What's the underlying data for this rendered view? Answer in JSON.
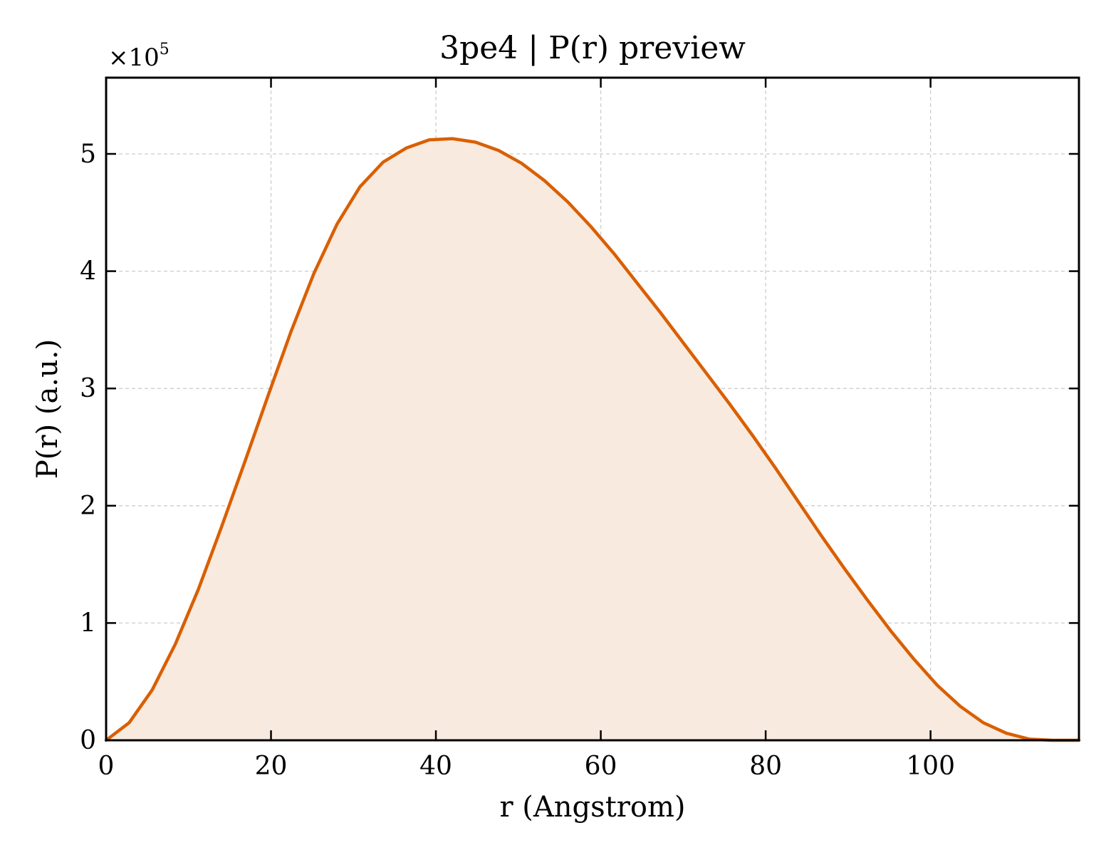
{
  "chart_data": {
    "type": "area",
    "title": "3pe4 | P(r) preview",
    "xlabel": "r (Angstrom)",
    "ylabel": "P(r) (a.u.)",
    "y_multiplier": {
      "base": "×10",
      "exponent": "5"
    },
    "xlim": [
      0,
      118
    ],
    "ylim": [
      0,
      5.65
    ],
    "y_scale_factor": 100000,
    "x_ticks": [
      0,
      20,
      40,
      60,
      80,
      100
    ],
    "y_ticks": [
      0,
      1,
      2,
      3,
      4,
      5
    ],
    "grid": true,
    "legend": "none",
    "series": [
      {
        "color": "#d95f02",
        "fill_color": "#f8eadf",
        "x": [
          0,
          2.8,
          5.6,
          8.4,
          11.2,
          14.0,
          16.8,
          19.6,
          22.4,
          25.2,
          28.0,
          30.8,
          33.6,
          36.4,
          39.2,
          42.0,
          44.8,
          47.6,
          50.4,
          53.2,
          56.0,
          58.8,
          61.6,
          64.4,
          67.2,
          70.0,
          72.8,
          75.6,
          78.4,
          81.2,
          84.0,
          86.8,
          89.6,
          92.4,
          95.2,
          98.0,
          100.8,
          103.6,
          106.4,
          109.2,
          112.0,
          114.8,
          118.0
        ],
        "y": [
          0.0,
          0.15,
          0.43,
          0.82,
          1.29,
          1.82,
          2.37,
          2.93,
          3.48,
          3.98,
          4.4,
          4.72,
          4.93,
          5.05,
          5.12,
          5.13,
          5.1,
          5.03,
          4.92,
          4.77,
          4.59,
          4.38,
          4.15,
          3.9,
          3.65,
          3.39,
          3.13,
          2.87,
          2.6,
          2.32,
          2.03,
          1.74,
          1.46,
          1.19,
          0.93,
          0.69,
          0.47,
          0.29,
          0.15,
          0.06,
          0.01,
          0.0,
          0.0
        ]
      }
    ]
  }
}
